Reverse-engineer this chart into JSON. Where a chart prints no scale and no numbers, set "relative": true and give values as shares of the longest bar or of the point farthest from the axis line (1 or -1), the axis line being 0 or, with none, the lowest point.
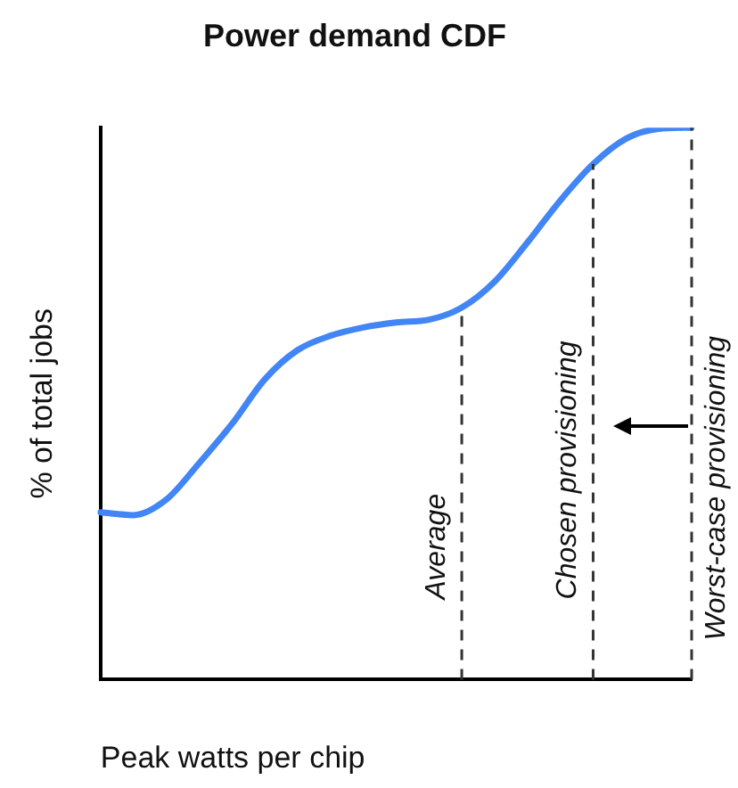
{
  "chart_data": {
    "type": "line",
    "title": "Power demand CDF",
    "xlabel": "Peak watts per chip",
    "ylabel": "% of total jobs",
    "relative": true,
    "categories": [
      null,
      null,
      null,
      null,
      null,
      null,
      null,
      null,
      null,
      null,
      null,
      null,
      null,
      null,
      null,
      null,
      null,
      null,
      null
    ],
    "series": [
      {
        "color": "#4285f4",
        "values": [
          0.303,
          0.298,
          0.326,
          0.392,
          0.463,
          0.544,
          0.597,
          0.623,
          0.638,
          0.647,
          0.652,
          0.674,
          0.721,
          0.792,
          0.868,
          0.934,
          0.98,
          0.998,
          1.0
        ]
      }
    ],
    "annotations": [
      "Average",
      "Chosen provisioning",
      "Worst-case provisioning"
    ],
    "grid": false,
    "legend": false,
    "marker": "none",
    "line_style": "solid"
  }
}
